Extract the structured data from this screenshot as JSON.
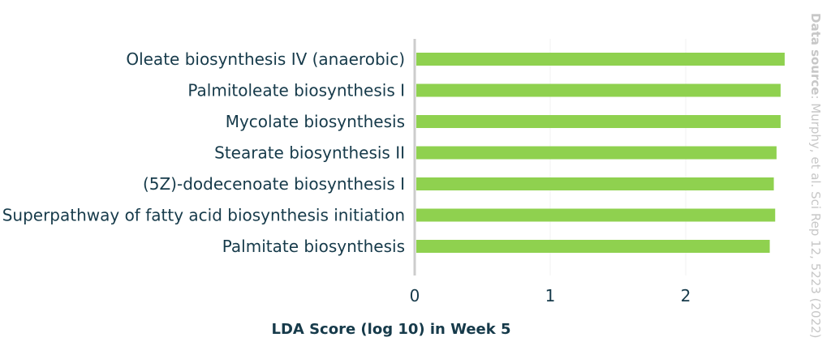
{
  "chart_data": {
    "type": "bar",
    "orientation": "horizontal",
    "categories": [
      "Oleate biosynthesis IV (anaerobic)",
      "Palmitoleate biosynthesis I",
      "Mycolate biosynthesis",
      "Stearate biosynthesis II",
      "(5Z)-dodecenoate biosynthesis I",
      "Superpathway of fatty acid biosynthesis initiation",
      "Palmitate biosynthesis"
    ],
    "values": [
      2.73,
      2.7,
      2.7,
      2.67,
      2.65,
      2.66,
      2.62
    ],
    "xlabel": "LDA Score (log 10) in Week 5",
    "xticks": [
      "0",
      "1",
      "2"
    ],
    "xlim": [
      0,
      2.8
    ],
    "bar_color": "#8fd14f",
    "axis_color": "#cccccc",
    "text_color": "#163a4a",
    "source_label": "Data source",
    "source_text": ": Murphy, et al. Sci Rep 12, 5223 (2022)"
  }
}
